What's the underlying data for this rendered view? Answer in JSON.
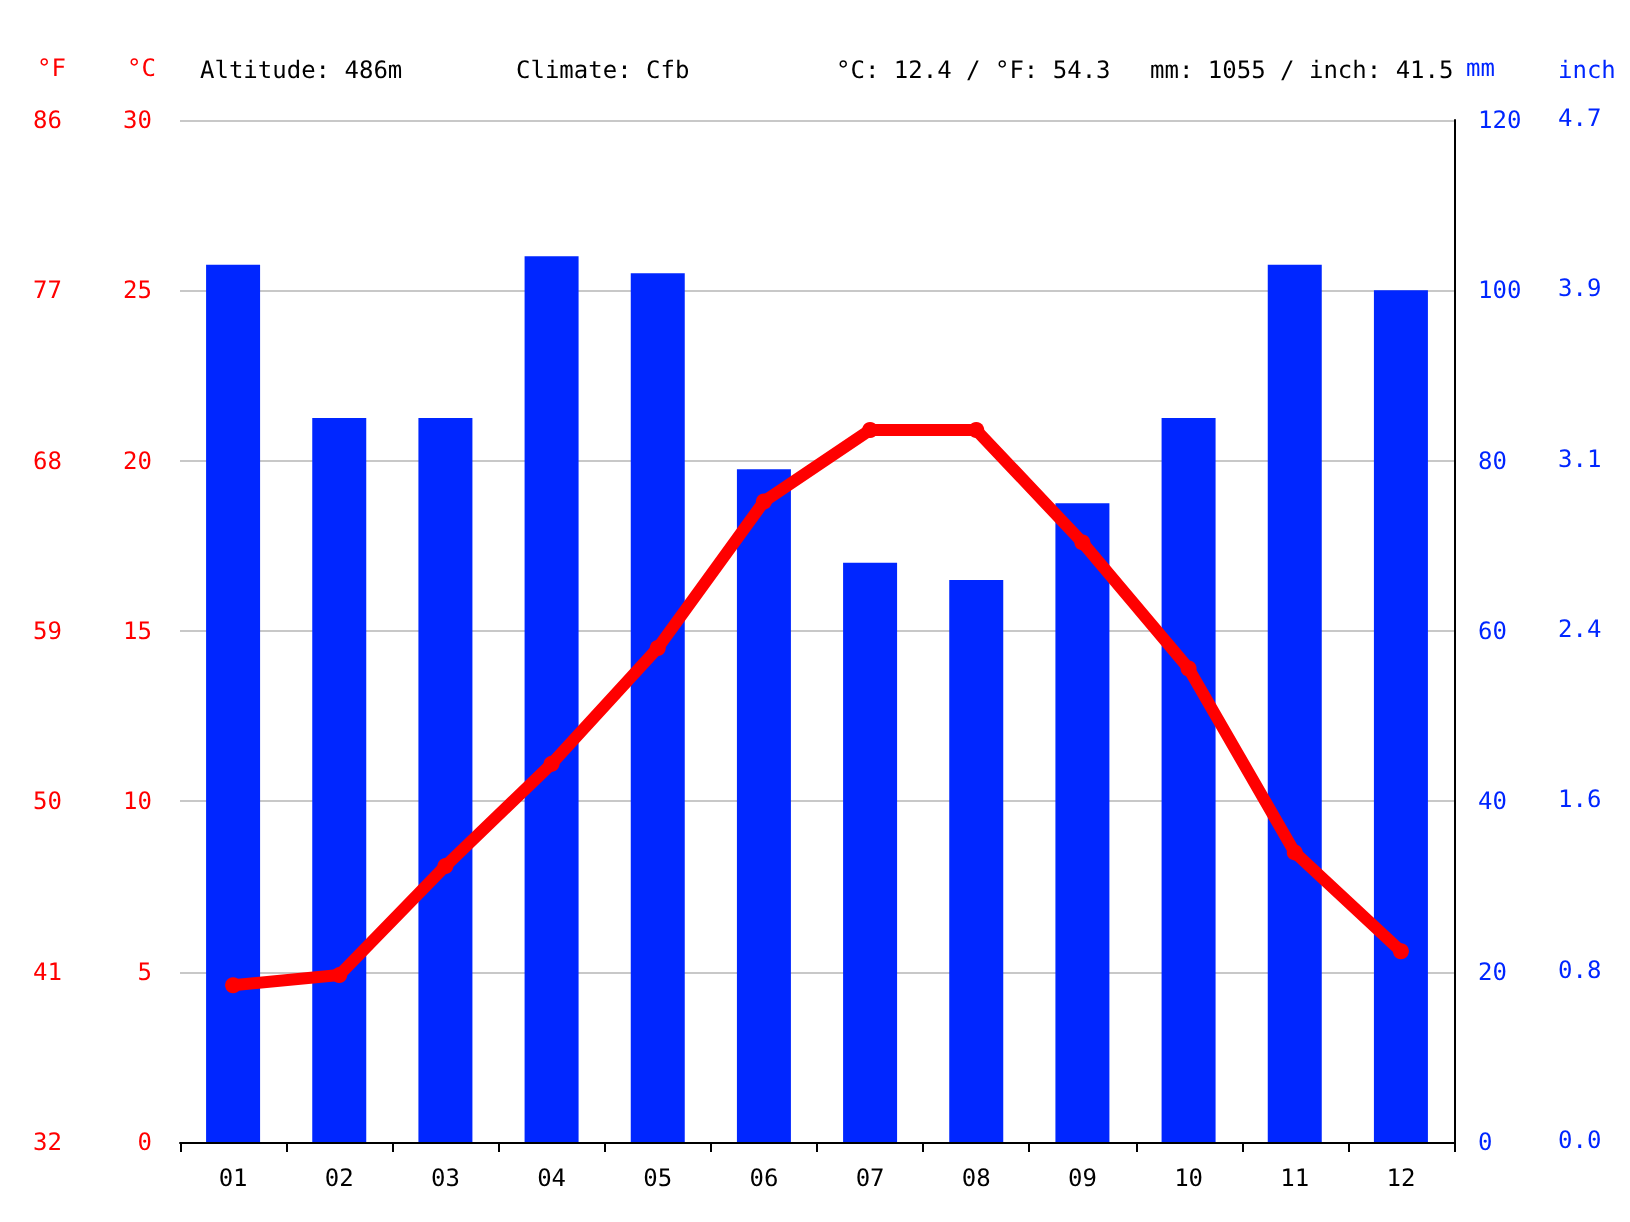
{
  "chart_data": {
    "type": "bar",
    "annotations": [
      "Altitude: 486m",
      "Climate: Cfb",
      "°C: 12.4 / °F: 54.3",
      "mm: 1055 / inch: 41.5",
      "inch",
      "0.0",
      "0.8",
      "1.6",
      "2.4",
      "3.1",
      "3.9",
      "4.7"
    ],
    "categories": [
      "01",
      "02",
      "03",
      "04",
      "05",
      "06",
      "07",
      "08",
      "09",
      "10",
      "11",
      "12"
    ],
    "series": [
      {
        "axis": "y3",
        "color": "#0026ff",
        "values": [
          103,
          85,
          85,
          104,
          102,
          79,
          68,
          66,
          75,
          85,
          103,
          100
        ]
      },
      {
        "type": "line",
        "axis": "y",
        "color": "#ff0000",
        "marker": "circle",
        "values": [
          4.6,
          4.9,
          8.1,
          11.1,
          14.5,
          18.8,
          20.9,
          20.9,
          17.6,
          13.9,
          8.5,
          5.6
        ]
      }
    ],
    "ylabel": "°C",
    "ylim": [
      0,
      30
    ],
    "yticks": [
      0,
      5,
      10,
      15,
      20,
      25,
      30
    ],
    "y2label": "°F",
    "y2lim": [
      32,
      86
    ],
    "y2ticks": [
      32,
      41,
      50,
      59,
      68,
      77,
      86
    ],
    "y3label": "mm",
    "y3lim": [
      0,
      120
    ],
    "y3ticks": [
      0,
      20,
      40,
      60,
      80,
      100,
      120
    ],
    "grid": "y"
  }
}
